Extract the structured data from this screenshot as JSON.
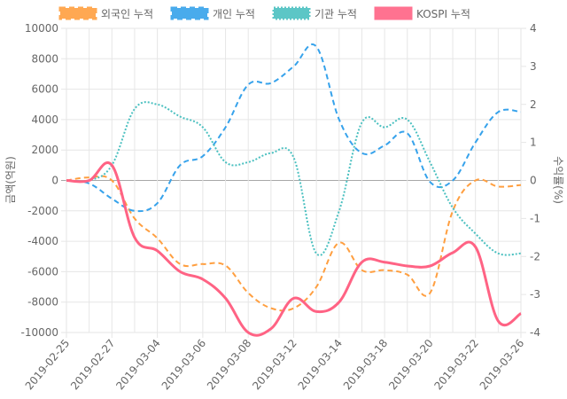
{
  "chart_data": {
    "type": "line",
    "x": [
      "2019-02-25",
      "2019-02-26",
      "2019-02-27",
      "2019-02-28",
      "2019-03-04",
      "2019-03-05",
      "2019-03-06",
      "2019-03-07",
      "2019-03-08",
      "2019-03-11",
      "2019-03-12",
      "2019-03-13",
      "2019-03-14",
      "2019-03-15",
      "2019-03-18",
      "2019-03-19",
      "2019-03-20",
      "2019-03-21",
      "2019-03-22",
      "2019-03-25",
      "2019-03-26"
    ],
    "x_tick_labels": [
      "2019-02-25",
      "2019-02-27",
      "2019-03-04",
      "2019-03-06",
      "2019-03-08",
      "2019-03-12",
      "2019-03-14",
      "2019-03-18",
      "2019-03-20",
      "2019-03-22",
      "2019-03-26"
    ],
    "ylabel": "금액(억원)",
    "y2label": "수익률(%)",
    "ylim": [
      -10000,
      10000
    ],
    "y_ticks": [
      "10000",
      "8000",
      "6000",
      "4000",
      "2000",
      "0",
      "-2000",
      "-4000",
      "-6000",
      "-8000",
      "-10000"
    ],
    "y2lim": [
      -4,
      4
    ],
    "y2_ticks": [
      "4",
      "3",
      "2",
      "1",
      "0",
      "-1",
      "-2",
      "-3",
      "-4"
    ],
    "grid": true,
    "legend_position": "top",
    "series": [
      {
        "name": "외국인 누적",
        "axis": "left",
        "color": "#ff9f40",
        "style": "dashed",
        "values": [
          0,
          200,
          0,
          -2500,
          -3800,
          -5500,
          -5500,
          -5600,
          -7400,
          -8400,
          -8400,
          -7000,
          -4100,
          -5900,
          -5900,
          -6200,
          -7400,
          -2000,
          0,
          -400,
          -300
        ]
      },
      {
        "name": "개인 누적",
        "axis": "left",
        "color": "#36a2eb",
        "style": "dashed",
        "values": [
          0,
          -200,
          -1200,
          -2000,
          -1500,
          1000,
          1600,
          3500,
          6300,
          6400,
          7500,
          8800,
          4000,
          1800,
          2300,
          3100,
          -100,
          0,
          2500,
          4500,
          4500
        ]
      },
      {
        "name": "기관 누적",
        "axis": "left",
        "color": "#4bc0c0",
        "style": "dotted",
        "values": [
          0,
          0,
          1000,
          4700,
          5000,
          4200,
          3500,
          1200,
          1200,
          1800,
          1500,
          -4800,
          -2000,
          3800,
          3500,
          4000,
          1200,
          -1800,
          -3500,
          -4800,
          -4800
        ]
      },
      {
        "name": "KOSPI 누적",
        "axis": "right",
        "color": "#ff6384",
        "style": "solid",
        "values": [
          0,
          0,
          0.4,
          -1.5,
          -1.85,
          -2.4,
          -2.6,
          -3.1,
          -4.0,
          -3.9,
          -3.1,
          -3.45,
          -3.2,
          -2.15,
          -2.15,
          -2.25,
          -2.25,
          -1.9,
          -1.75,
          -3.7,
          -3.5
        ]
      }
    ]
  }
}
